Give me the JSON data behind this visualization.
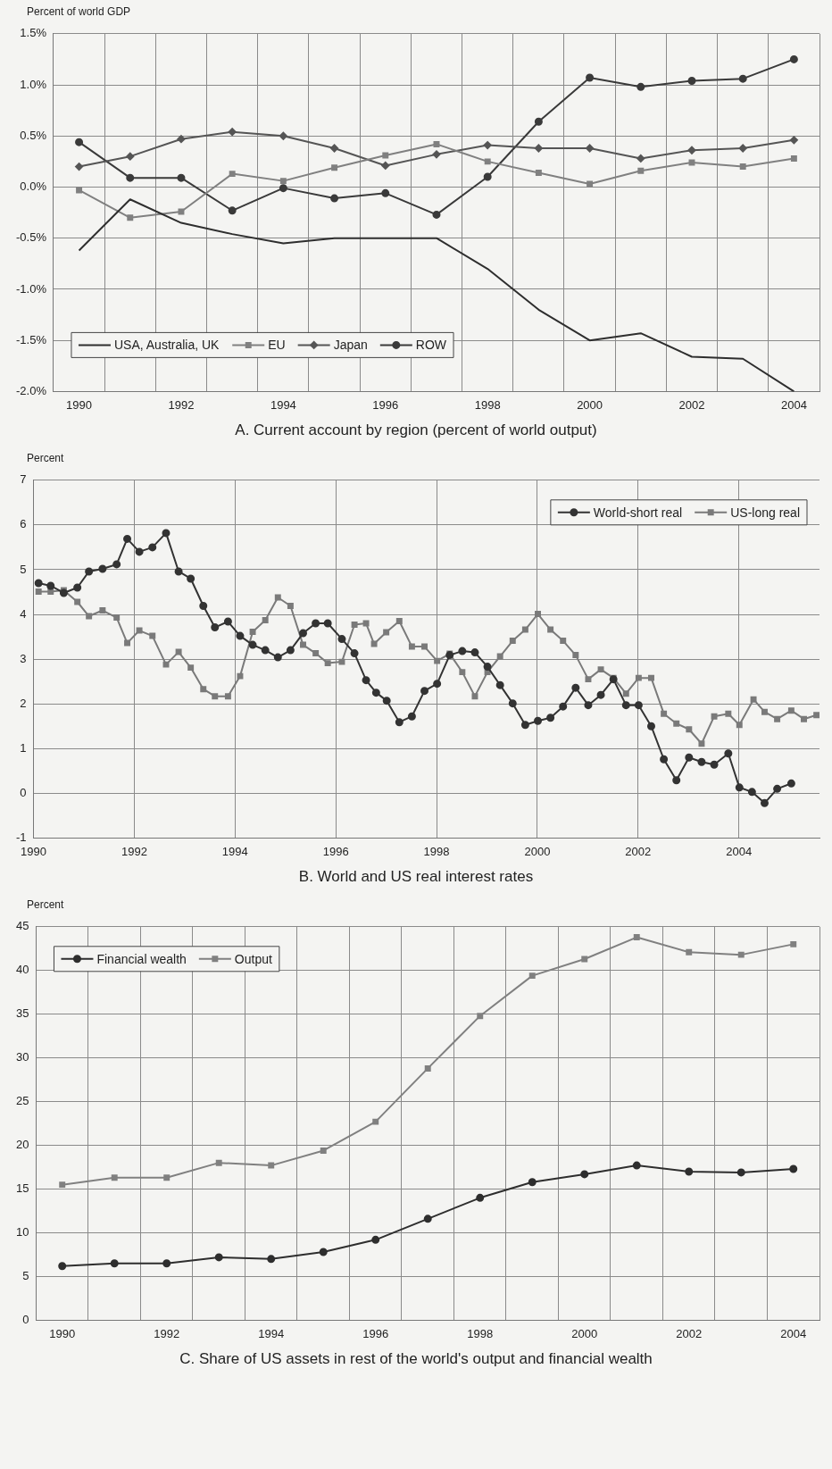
{
  "chart_data": [
    {
      "type": "line",
      "title": "A. Current account by region (percent of world output)",
      "ylabel": "Percent of world GDP",
      "categories": [
        "1990",
        null,
        "1992",
        null,
        "1994",
        null,
        "1996",
        null,
        "1998",
        null,
        "2000",
        null,
        "2002",
        null,
        "2004"
      ],
      "ylim": [
        -2.0,
        1.5
      ],
      "yticks": [
        {
          "value": -2.0,
          "label": "-2.0%"
        },
        {
          "value": -1.5,
          "label": "-1.5%"
        },
        {
          "value": -1.0,
          "label": "-1.0%"
        },
        {
          "value": -0.5,
          "label": "-0.5%"
        },
        {
          "value": 0,
          "label": "0.0%"
        },
        {
          "value": 0.5,
          "label": "0.5%"
        },
        {
          "value": 1.0,
          "label": "1.0%"
        },
        {
          "value": 1.5,
          "label": "1.5%"
        }
      ],
      "grid": true,
      "legend": "bottom left",
      "series": [
        {
          "name": "USA, Australia, UK",
          "color": "#2e2e2e",
          "marker": "none",
          "values": [
            -0.62,
            -0.12,
            -0.35,
            -0.46,
            -0.55,
            -0.5,
            -0.5,
            -0.5,
            -0.8,
            -1.2,
            -1.5,
            -1.43,
            -1.66,
            -1.68,
            -2.0
          ]
        },
        {
          "name": "EU",
          "color": "#808080",
          "marker": "square",
          "values": [
            -0.03,
            -0.3,
            -0.24,
            0.13,
            0.06,
            0.19,
            0.31,
            0.42,
            0.25,
            0.14,
            0.03,
            0.16,
            0.24,
            0.2,
            0.28
          ]
        },
        {
          "name": "Japan",
          "color": "#555555",
          "marker": "diamond",
          "values": [
            0.2,
            0.3,
            0.47,
            0.54,
            0.5,
            0.38,
            0.21,
            0.32,
            0.41,
            0.38,
            0.38,
            0.28,
            0.36,
            0.38,
            0.46
          ]
        },
        {
          "name": "ROW",
          "color": "#3a3a3a",
          "marker": "circle",
          "values": [
            0.44,
            0.09,
            0.09,
            -0.23,
            -0.01,
            -0.11,
            -0.06,
            -0.27,
            0.1,
            0.64,
            1.07,
            0.98,
            1.04,
            1.06,
            1.25
          ]
        }
      ]
    },
    {
      "type": "line",
      "title": "B. World and US real interest rates",
      "ylabel": "Percent",
      "xlim": [
        1990,
        2005.6
      ],
      "xticks": [
        1990,
        1992,
        1994,
        1996,
        1998,
        2000,
        2002,
        2004
      ],
      "ylim": [
        -1,
        7
      ],
      "yticks": [
        -1,
        0,
        1,
        2,
        3,
        4,
        5,
        6,
        7
      ],
      "grid": true,
      "legend": "top right",
      "series": [
        {
          "name": "World-short real",
          "color": "#333333",
          "marker": "circle",
          "x": [
            1990.1,
            1990.34,
            1990.6,
            1990.87,
            1991.1,
            1991.37,
            1991.65,
            1991.86,
            1992.1,
            1992.36,
            1992.63,
            1992.88,
            1993.12,
            1993.37,
            1993.6,
            1993.86,
            1994.1,
            1994.35,
            1994.6,
            1994.85,
            1995.1,
            1995.35,
            1995.6,
            1995.84,
            1996.12,
            1996.37,
            1996.6,
            1996.8,
            1997.01,
            1997.26,
            1997.51,
            1997.76,
            1998.01,
            1998.26,
            1998.51,
            1998.76,
            1999.01,
            1999.26,
            1999.51,
            1999.76,
            2000.01,
            2000.26,
            2000.51,
            2000.76,
            2001.01,
            2001.26,
            2001.51,
            2001.76,
            2002.01,
            2002.26,
            2002.51,
            2002.76,
            2003.01,
            2003.26,
            2003.51,
            2003.79,
            2004.01,
            2004.26,
            2004.51,
            2004.76,
            2005.04
          ],
          "values": [
            4.7,
            4.64,
            4.48,
            4.6,
            4.96,
            5.02,
            5.12,
            5.69,
            5.4,
            5.5,
            5.82,
            4.96,
            4.8,
            4.19,
            3.71,
            3.84,
            3.52,
            3.32,
            3.2,
            3.04,
            3.2,
            3.58,
            3.8,
            3.8,
            3.45,
            3.13,
            2.53,
            2.25,
            2.07,
            1.59,
            1.72,
            2.29,
            2.45,
            3.09,
            3.18,
            3.15,
            2.83,
            2.42,
            2.01,
            1.53,
            1.62,
            1.69,
            1.94,
            2.36,
            1.97,
            2.2,
            2.55,
            1.97,
            1.97,
            1.5,
            0.76,
            0.29,
            0.8,
            0.7,
            0.64,
            0.89,
            0.13,
            0.03,
            -0.22,
            0.1,
            0.22
          ]
        },
        {
          "name": "US-long real",
          "color": "#7a7a7a",
          "marker": "square",
          "x": [
            1990.1,
            1990.34,
            1990.6,
            1990.87,
            1991.1,
            1991.37,
            1991.65,
            1991.86,
            1992.1,
            1992.36,
            1992.63,
            1992.88,
            1993.12,
            1993.37,
            1993.6,
            1993.86,
            1994.1,
            1994.35,
            1994.6,
            1994.85,
            1995.1,
            1995.35,
            1995.6,
            1995.84,
            1996.12,
            1996.37,
            1996.6,
            1996.76,
            1997.0,
            1997.26,
            1997.51,
            1997.76,
            1998.01,
            1998.26,
            1998.51,
            1998.76,
            1999.01,
            1999.26,
            1999.51,
            1999.76,
            2000.01,
            2000.26,
            2000.51,
            2000.76,
            2001.01,
            2001.26,
            2001.51,
            2001.76,
            2002.01,
            2002.26,
            2002.51,
            2002.76,
            2003.01,
            2003.26,
            2003.51,
            2003.79,
            2004.01,
            2004.29,
            2004.51,
            2004.76,
            2005.04,
            2005.29,
            2005.54
          ],
          "values": [
            4.51,
            4.51,
            4.54,
            4.28,
            3.96,
            4.09,
            3.93,
            3.36,
            3.64,
            3.52,
            2.88,
            3.16,
            2.81,
            2.33,
            2.17,
            2.17,
            2.62,
            3.61,
            3.87,
            4.38,
            4.19,
            3.32,
            3.13,
            2.91,
            2.94,
            3.77,
            3.8,
            3.34,
            3.6,
            3.85,
            3.28,
            3.28,
            2.96,
            3.12,
            2.71,
            2.17,
            2.71,
            3.06,
            3.41,
            3.66,
            4.01,
            3.66,
            3.41,
            3.09,
            2.55,
            2.77,
            2.58,
            2.23,
            2.58,
            2.58,
            1.78,
            1.56,
            1.43,
            1.11,
            1.72,
            1.78,
            1.53,
            2.1,
            1.82,
            1.66,
            1.85,
            1.66,
            1.75
          ]
        }
      ]
    },
    {
      "type": "line",
      "title": "C. Share of US assets in rest of the world's output and financial wealth",
      "ylabel": "Percent",
      "categories": [
        "1990",
        null,
        "1992",
        null,
        "1994",
        null,
        "1996",
        null,
        "1998",
        null,
        "2000",
        null,
        "2002",
        null,
        "2004"
      ],
      "ylim": [
        0,
        45
      ],
      "yticks": [
        0,
        5,
        10,
        15,
        20,
        25,
        30,
        35,
        40,
        45
      ],
      "grid": true,
      "legend": "top left",
      "series": [
        {
          "name": "Financial wealth",
          "color": "#2e2e2e",
          "marker": "circle",
          "values": [
            6.2,
            6.5,
            6.5,
            7.2,
            7.0,
            7.8,
            9.2,
            11.6,
            14.0,
            15.8,
            16.7,
            17.7,
            17.0,
            16.9,
            17.3
          ]
        },
        {
          "name": "Output",
          "color": "#808080",
          "marker": "square",
          "values": [
            15.5,
            16.3,
            16.3,
            18.0,
            17.7,
            19.4,
            22.7,
            28.8,
            34.8,
            39.4,
            41.3,
            43.8,
            42.1,
            41.8,
            43.0
          ]
        }
      ]
    }
  ]
}
